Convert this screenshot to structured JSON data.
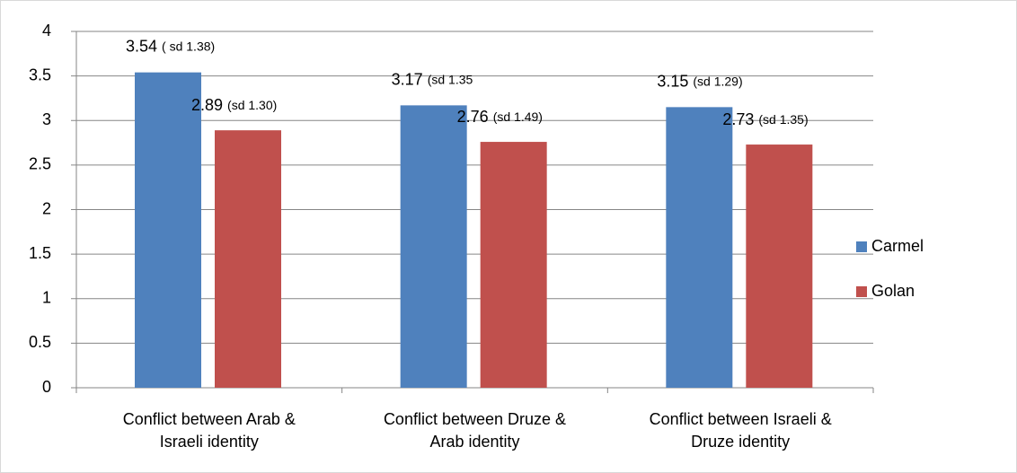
{
  "chart_data": {
    "type": "bar",
    "categories": [
      [
        "Conflict between Arab &",
        "Israeli identity"
      ],
      [
        "Conflict between  Druze &",
        "Arab identity"
      ],
      [
        "Conflict between Israeli &",
        "Druze identity"
      ]
    ],
    "series": [
      {
        "name": "Carmel",
        "color": "#4f81bd",
        "values": [
          3.54,
          3.17,
          3.15
        ],
        "annotations": [
          "( sd 1.38)",
          "(sd 1.35",
          "(sd 1.29)"
        ]
      },
      {
        "name": "Golan",
        "color": "#c0504d",
        "values": [
          2.89,
          2.76,
          2.73
        ],
        "annotations": [
          "(sd 1.30)",
          "(sd 1.49)",
          "(sd 1.35)"
        ]
      }
    ],
    "ylim": [
      0,
      4
    ],
    "yticks": [
      0,
      0.5,
      1,
      1.5,
      2,
      2.5,
      3,
      3.5,
      4
    ],
    "grid": true,
    "legend": "right"
  }
}
